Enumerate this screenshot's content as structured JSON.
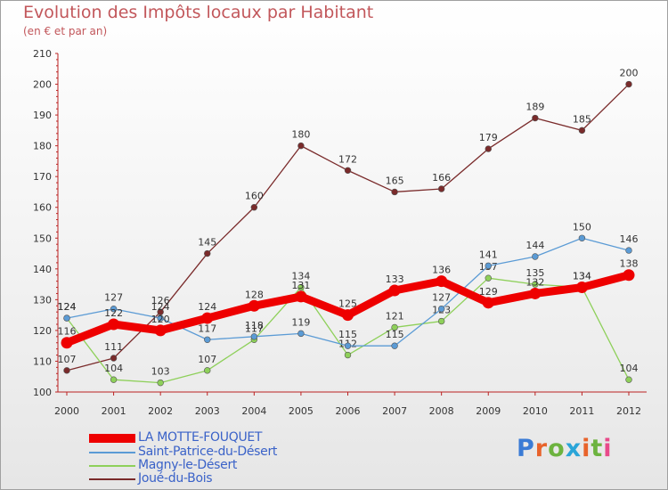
{
  "header": {
    "title": "Evolution des Impôts locaux par Habitant",
    "subtitle": "(en € et par an)"
  },
  "brand": {
    "logo_text": "Proxiti",
    "logo_colors": [
      "#3a7bd5",
      "#e8632b",
      "#6db33f",
      "#2aa5d8",
      "#e8632b",
      "#6db33f",
      "#e84a8a"
    ]
  },
  "chart_data": {
    "type": "line",
    "title": "Evolution des Impôts locaux par Habitant",
    "subtitle": "(en € et par an)",
    "xlabel": "",
    "ylabel": "",
    "x": [
      "2000",
      "2001",
      "2002",
      "2003",
      "2004",
      "2005",
      "2006",
      "2007",
      "2008",
      "2009",
      "2010",
      "2011",
      "2012"
    ],
    "ylim": [
      100,
      210
    ],
    "yticks": [
      100,
      110,
      120,
      130,
      140,
      150,
      160,
      170,
      180,
      190,
      200,
      210
    ],
    "grid": false,
    "legend_position": "bottom-left",
    "series": [
      {
        "name": "LA MOTTE-FOUQUET",
        "color": "#ee0000",
        "values": [
          116,
          122,
          120,
          124,
          128,
          131,
          125,
          133,
          136,
          129,
          132,
          134,
          138
        ],
        "labels": [
          "116",
          "122",
          "120",
          "124",
          "128",
          "131",
          "125",
          "133",
          "136",
          "129",
          "132",
          "134",
          "138"
        ],
        "highlight": true
      },
      {
        "name": "Saint-Patrice-du-Désert",
        "color": "#5b9bd5",
        "values": [
          124,
          127,
          124,
          117,
          118,
          119,
          115,
          115,
          127,
          141,
          144,
          150,
          146
        ],
        "labels": [
          "124",
          "127",
          "124",
          "117",
          "118",
          "119",
          "115",
          "115",
          "127",
          "141",
          "144",
          "150",
          "146"
        ]
      },
      {
        "name": "Magny-le-Désert",
        "color": "#8ed05a",
        "values": [
          124,
          104,
          103,
          107,
          117,
          134,
          112,
          121,
          123,
          137,
          135,
          134,
          104
        ],
        "labels": [
          "124",
          "104",
          "103",
          "107",
          "117",
          "134",
          "112",
          "121",
          "123",
          "137",
          "135",
          "134",
          "104"
        ]
      },
      {
        "name": "Joué-du-Bois",
        "color": "#7a2b2b",
        "values": [
          107,
          111,
          126,
          145,
          160,
          180,
          172,
          165,
          166,
          179,
          189,
          185,
          200
        ],
        "labels": [
          "107",
          "111",
          "126",
          "145",
          "160",
          "180",
          "172",
          "165",
          "166",
          "179",
          "189",
          "185",
          "200"
        ]
      }
    ]
  }
}
